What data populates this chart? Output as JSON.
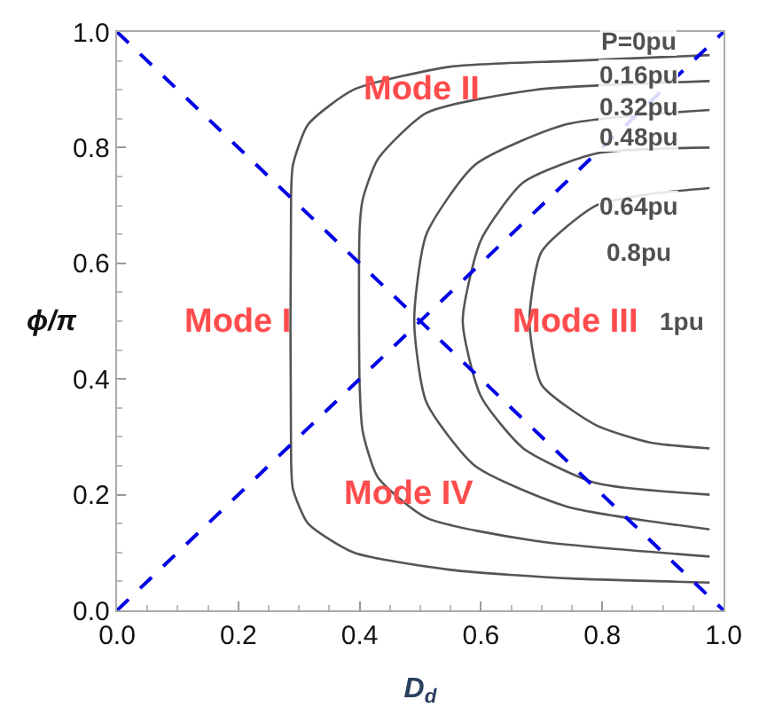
{
  "chart_data": {
    "type": "line",
    "xlabel": "D$_{d}$",
    "ylabel": "ϕ/π",
    "xlim": [
      0,
      1
    ],
    "ylim": [
      0,
      1
    ],
    "xticks": [
      {
        "value": 0,
        "label": "0.0"
      },
      0.2,
      0.4,
      0.6,
      0.8,
      {
        "value": 1,
        "label": "1.0"
      }
    ],
    "yticks": [
      {
        "value": 0,
        "label": "0.0"
      },
      0.2,
      0.4,
      0.6,
      0.8,
      {
        "value": 1,
        "label": "1.0"
      }
    ],
    "marker": "none",
    "series": [
      {
        "color": "#555555",
        "line_style": "solid",
        "x": [
          0.977,
          0.75,
          0.55,
          0.39,
          0.315,
          0.29,
          0.287,
          0.287,
          0.29,
          0.315,
          0.39,
          0.55,
          0.75,
          0.977
        ],
        "values": [
          0.96,
          0.95,
          0.94,
          0.9,
          0.84,
          0.77,
          0.72,
          0.26,
          0.21,
          0.15,
          0.1,
          0.07,
          0.055,
          0.048
        ]
      },
      {
        "color": "#555555",
        "line_style": "solid",
        "x": [
          0.977,
          0.69,
          0.51,
          0.43,
          0.405,
          0.4,
          0.4,
          0.405,
          0.43,
          0.51,
          0.69,
          0.977
        ],
        "values": [
          0.915,
          0.9,
          0.86,
          0.78,
          0.71,
          0.66,
          0.39,
          0.31,
          0.23,
          0.16,
          0.12,
          0.093
        ]
      },
      {
        "color": "#555555",
        "line_style": "solid",
        "x": [
          0.977,
          0.74,
          0.59,
          0.51,
          0.49,
          0.51,
          0.59,
          0.74,
          0.977
        ],
        "values": [
          0.865,
          0.84,
          0.77,
          0.65,
          0.5,
          0.36,
          0.25,
          0.18,
          0.14
        ]
      },
      {
        "color": "#555555",
        "line_style": "solid",
        "x": [
          0.977,
          0.79,
          0.67,
          0.6,
          0.57,
          0.6,
          0.67,
          0.79,
          0.977
        ],
        "values": [
          0.8,
          0.79,
          0.74,
          0.64,
          0.5,
          0.37,
          0.28,
          0.22,
          0.2
        ]
      },
      {
        "color": "#555555",
        "line_style": "solid",
        "x": [
          0.977,
          0.88,
          0.79,
          0.7,
          0.68,
          0.7,
          0.79,
          0.88,
          0.977
        ],
        "values": [
          0.73,
          0.72,
          0.7,
          0.62,
          0.5,
          0.39,
          0.32,
          0.29,
          0.28
        ]
      },
      {
        "color": "#0000e6",
        "line_style": "dashed",
        "x": [
          0,
          1
        ],
        "values": [
          0,
          1
        ]
      },
      {
        "color": "#0000e6",
        "line_style": "dashed",
        "x": [
          0,
          1
        ],
        "values": [
          1,
          0
        ]
      }
    ],
    "annotations": [
      "Mode I",
      "Mode II",
      "Mode III",
      "Mode IV",
      "P=0pu",
      "0.16pu",
      "0.32pu",
      "0.48pu",
      "0.64pu",
      "0.8pu",
      "1pu"
    ]
  }
}
